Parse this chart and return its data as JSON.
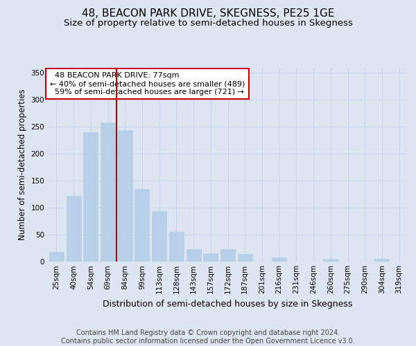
{
  "title_line1": "48, BEACON PARK DRIVE, SKEGNESS, PE25 1GE",
  "title_line2": "Size of property relative to semi-detached houses in Skegness",
  "xlabel": "Distribution of semi-detached houses by size in Skegness",
  "ylabel": "Number of semi-detached properties",
  "categories": [
    "25sqm",
    "40sqm",
    "54sqm",
    "69sqm",
    "84sqm",
    "99sqm",
    "113sqm",
    "128sqm",
    "143sqm",
    "157sqm",
    "172sqm",
    "187sqm",
    "201sqm",
    "216sqm",
    "231sqm",
    "246sqm",
    "260sqm",
    "275sqm",
    "290sqm",
    "304sqm",
    "319sqm"
  ],
  "values": [
    18,
    122,
    240,
    258,
    244,
    135,
    93,
    55,
    22,
    15,
    22,
    14,
    0,
    7,
    0,
    0,
    4,
    0,
    0,
    4,
    0
  ],
  "bar_color": "#b8cfe8",
  "bar_edgecolor": "#b8cfe8",
  "vline_x": 3.5,
  "vline_color": "#cc0000",
  "annotation_text": "  48 BEACON PARK DRIVE: 77sqm\n← 40% of semi-detached houses are smaller (489)\n  59% of semi-detached houses are larger (721) →",
  "annotation_box_edgecolor": "#cc0000",
  "annotation_box_facecolor": "#ffffff",
  "ylim": [
    0,
    360
  ],
  "yticks": [
    0,
    50,
    100,
    150,
    200,
    250,
    300,
    350
  ],
  "grid_color": "#c8d4e8",
  "background_color": "#dde6f0",
  "title_fontsize": 11,
  "subtitle_fontsize": 9.5,
  "tick_fontsize": 7.5,
  "ylabel_fontsize": 8.5,
  "xlabel_fontsize": 9,
  "annotation_fontsize": 8,
  "footer_fontsize": 7,
  "footer": "Contains HM Land Registry data © Crown copyright and database right 2024.\nContains public sector information licensed under the Open Government Licence v3.0."
}
